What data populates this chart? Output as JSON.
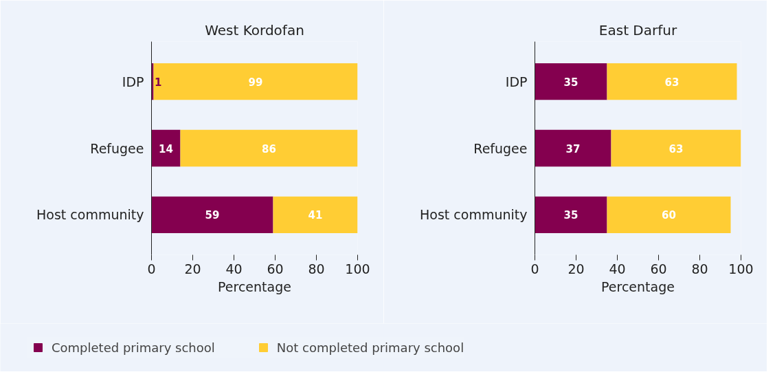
{
  "chart_data": [
    {
      "type": "bar",
      "orientation": "horizontal",
      "stacked": true,
      "title": "West Kordofan",
      "xlabel": "Percentage",
      "categories": [
        "IDP",
        "Refugee",
        "Host community"
      ],
      "xlim": [
        0,
        100
      ],
      "xticks": [
        0,
        20,
        40,
        60,
        80,
        100
      ],
      "grid": false,
      "legend": "bottom",
      "data_labels": true,
      "series": [
        {
          "name": "Completed primary school",
          "color": "#84004f",
          "values": [
            1,
            14,
            59
          ]
        },
        {
          "name": "Not completed primary school",
          "color": "#ffcd34",
          "values": [
            99,
            86,
            41
          ]
        }
      ]
    },
    {
      "type": "bar",
      "orientation": "horizontal",
      "stacked": true,
      "title": "East Darfur",
      "xlabel": "Percentage",
      "categories": [
        "IDP",
        "Refugee",
        "Host community"
      ],
      "xlim": [
        0,
        100
      ],
      "xticks": [
        0,
        20,
        40,
        60,
        80,
        100
      ],
      "grid": false,
      "data_labels": true,
      "series": [
        {
          "color": "#84004f",
          "values": [
            35,
            37,
            35
          ]
        },
        {
          "color": "#ffcd34",
          "values": [
            63,
            63,
            60
          ]
        }
      ]
    }
  ]
}
